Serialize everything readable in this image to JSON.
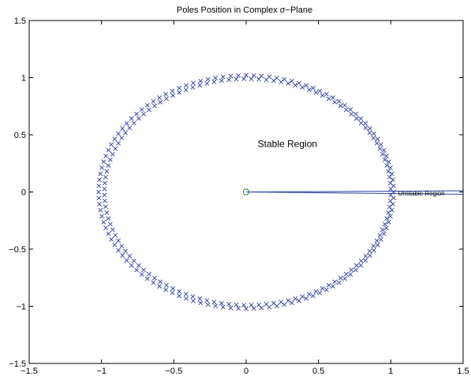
{
  "chart_data": {
    "type": "scatter",
    "title": "Poles Position in Complex σ−Plane",
    "xlabel": "",
    "ylabel": "",
    "xlim": [
      -1.5,
      1.5
    ],
    "ylim": [
      -1.5,
      1.5
    ],
    "xticks": [
      -1.5,
      -1,
      -0.5,
      0,
      0.5,
      1,
      1.5
    ],
    "yticks": [
      -1.5,
      -1,
      -0.5,
      0,
      0.5,
      1,
      1.5
    ],
    "xtick_labels": [
      "−1.5",
      "−1",
      "−0.5",
      "0",
      "0.5",
      "1",
      "1.5"
    ],
    "ytick_labels": [
      "−1.5",
      "−1",
      "−0.5",
      "0",
      "0.5",
      "1",
      "1.5"
    ],
    "grid": false,
    "colors": {
      "poles": "#2b3f9e",
      "lines": "#2b3f9e",
      "origin": "#1f7a2e"
    },
    "pole_rings": [
      {
        "center": [
          0.0,
          0.0
        ],
        "radius_x": 1.02,
        "radius_y": 1.02,
        "count": 120,
        "phase_deg": 0
      },
      {
        "center": [
          0.01,
          0.0
        ],
        "radius_x": 0.99,
        "radius_y": 0.99,
        "count": 120,
        "phase_deg": 1.5
      }
    ],
    "origin_marker": {
      "x": 0,
      "y": 0,
      "marker": "circle"
    },
    "lines": [
      {
        "from": [
          0,
          0
        ],
        "to": [
          1.5,
          0.01
        ]
      },
      {
        "from": [
          0,
          0
        ],
        "to": [
          1.5,
          -0.02
        ]
      }
    ],
    "annotations": [
      {
        "text": "Stable Region",
        "x": 0.08,
        "y": 0.42,
        "size": "normal"
      },
      {
        "text": "Unstable Region",
        "x": 1.05,
        "y": -0.005,
        "size": "small"
      }
    ]
  }
}
